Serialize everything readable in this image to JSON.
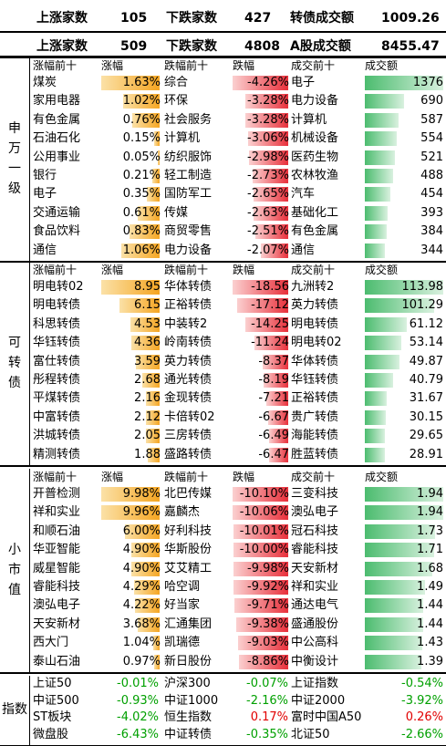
{
  "summary": [
    {
      "label_up": "上涨家数",
      "up": "105",
      "label_down": "下跌家数",
      "down": "427",
      "label_vol": "转债成交额",
      "vol": "1009.26"
    },
    {
      "label_up": "上涨家数",
      "up": "509",
      "label_down": "下跌家数",
      "down": "4808",
      "label_vol": "A股成交额",
      "vol": "8455.47"
    }
  ],
  "sections": [
    {
      "label": [
        "申",
        "万",
        "一",
        "级"
      ],
      "headers": [
        "涨幅前十",
        "涨幅",
        "跌幅前十",
        "跌幅",
        "成交前十",
        "成交额"
      ],
      "rows": [
        {
          "up_name": "煤炭",
          "up_pct": "1.63%",
          "up_v": 1.63,
          "dn_name": "综合",
          "dn_pct": "-4.26%",
          "dn_v": 4.26,
          "vol_name": "电子",
          "vol": "1376",
          "vol_v": 1376
        },
        {
          "up_name": "家用电器",
          "up_pct": "1.02%",
          "up_v": 1.02,
          "dn_name": "环保",
          "dn_pct": "-3.28%",
          "dn_v": 3.28,
          "vol_name": "电力设备",
          "vol": "690",
          "vol_v": 690
        },
        {
          "up_name": "有色金属",
          "up_pct": "0.76%",
          "up_v": 0.76,
          "dn_name": "社会服务",
          "dn_pct": "-3.28%",
          "dn_v": 3.28,
          "vol_name": "计算机",
          "vol": "587",
          "vol_v": 587
        },
        {
          "up_name": "石油石化",
          "up_pct": "0.15%",
          "up_v": 0.15,
          "dn_name": "计算机",
          "dn_pct": "-3.06%",
          "dn_v": 3.06,
          "vol_name": "机械设备",
          "vol": "554",
          "vol_v": 554
        },
        {
          "up_name": "公用事业",
          "up_pct": "0.05%",
          "up_v": 0.05,
          "dn_name": "纺织服饰",
          "dn_pct": "-2.98%",
          "dn_v": 2.98,
          "vol_name": "医药生物",
          "vol": "521",
          "vol_v": 521
        },
        {
          "up_name": "银行",
          "up_pct": "0.21%",
          "up_v": 0.21,
          "dn_name": "轻工制造",
          "dn_pct": "-2.73%",
          "dn_v": 2.73,
          "vol_name": "农林牧渔",
          "vol": "488",
          "vol_v": 488
        },
        {
          "up_name": "电子",
          "up_pct": "0.35%",
          "up_v": 0.35,
          "dn_name": "国防军工",
          "dn_pct": "-2.65%",
          "dn_v": 2.65,
          "vol_name": "汽车",
          "vol": "454",
          "vol_v": 454
        },
        {
          "up_name": "交通运输",
          "up_pct": "0.61%",
          "up_v": 0.61,
          "dn_name": "传媒",
          "dn_pct": "-2.63%",
          "dn_v": 2.63,
          "vol_name": "基础化工",
          "vol": "393",
          "vol_v": 393
        },
        {
          "up_name": "食品饮料",
          "up_pct": "0.83%",
          "up_v": 0.83,
          "dn_name": "商贸零售",
          "dn_pct": "-2.51%",
          "dn_v": 2.51,
          "vol_name": "有色金属",
          "vol": "384",
          "vol_v": 384
        },
        {
          "up_name": "通信",
          "up_pct": "1.06%",
          "up_v": 1.06,
          "dn_name": "电力设备",
          "dn_pct": "-2.07%",
          "dn_v": 2.07,
          "vol_name": "通信",
          "vol": "344",
          "vol_v": 344
        }
      ]
    },
    {
      "label": [
        "可",
        "转",
        "债"
      ],
      "headers": [
        "涨幅前十",
        "涨幅",
        "跌幅前十",
        "跌幅",
        "成交前十",
        "成交额"
      ],
      "rows": [
        {
          "up_name": "明电转02",
          "up_pct": "8.95",
          "up_v": 8.95,
          "dn_name": "华体转债",
          "dn_pct": "-18.56",
          "dn_v": 18.56,
          "vol_name": "九洲转2",
          "vol": "113.98",
          "vol_v": 113.98
        },
        {
          "up_name": "明电转债",
          "up_pct": "6.15",
          "up_v": 6.15,
          "dn_name": "正裕转债",
          "dn_pct": "-17.12",
          "dn_v": 17.12,
          "vol_name": "英力转债",
          "vol": "101.29",
          "vol_v": 101.29
        },
        {
          "up_name": "科思转债",
          "up_pct": "4.53",
          "up_v": 4.53,
          "dn_name": "中装转2",
          "dn_pct": "-14.25",
          "dn_v": 14.25,
          "vol_name": "明电转债",
          "vol": "61.12",
          "vol_v": 61.12
        },
        {
          "up_name": "华钰转债",
          "up_pct": "4.36",
          "up_v": 4.36,
          "dn_name": "岭南转债",
          "dn_pct": "-11.24",
          "dn_v": 11.24,
          "vol_name": "明电转02",
          "vol": "53.14",
          "vol_v": 53.14
        },
        {
          "up_name": "富仕转债",
          "up_pct": "3.59",
          "up_v": 3.59,
          "dn_name": "英力转债",
          "dn_pct": "-8.37",
          "dn_v": 8.37,
          "vol_name": "华体转债",
          "vol": "49.87",
          "vol_v": 49.87
        },
        {
          "up_name": "彤程转债",
          "up_pct": "2.68",
          "up_v": 2.68,
          "dn_name": "通光转债",
          "dn_pct": "-8.19",
          "dn_v": 8.19,
          "vol_name": "华钰转债",
          "vol": "40.79",
          "vol_v": 40.79
        },
        {
          "up_name": "平煤转债",
          "up_pct": "2.16",
          "up_v": 2.16,
          "dn_name": "金现转债",
          "dn_pct": "-7.21",
          "dn_v": 7.21,
          "vol_name": "正裕转债",
          "vol": "31.67",
          "vol_v": 31.67
        },
        {
          "up_name": "中富转债",
          "up_pct": "2.12",
          "up_v": 2.12,
          "dn_name": "卡倍转02",
          "dn_pct": "-6.67",
          "dn_v": 6.67,
          "vol_name": "贵广转债",
          "vol": "30.15",
          "vol_v": 30.15
        },
        {
          "up_name": "洪城转债",
          "up_pct": "2.05",
          "up_v": 2.05,
          "dn_name": "三房转债",
          "dn_pct": "-6.49",
          "dn_v": 6.49,
          "vol_name": "海能转债",
          "vol": "29.65",
          "vol_v": 29.65
        },
        {
          "up_name": "精测转债",
          "up_pct": "1.88",
          "up_v": 1.88,
          "dn_name": "盛路转债",
          "dn_pct": "-6.47",
          "dn_v": 6.47,
          "vol_name": "胜蓝转债",
          "vol": "28.91",
          "vol_v": 28.91
        }
      ]
    },
    {
      "label": [
        "小",
        "市",
        "值"
      ],
      "headers": [
        "涨幅前十",
        "涨幅",
        "跌幅前十",
        "跌幅",
        "成交前十",
        "成交额"
      ],
      "rows": [
        {
          "up_name": "开普检测",
          "up_pct": "9.98%",
          "up_v": 9.98,
          "dn_name": "北巴传媒",
          "dn_pct": "-10.10%",
          "dn_v": 10.1,
          "vol_name": "三变科技",
          "vol": "1.94",
          "vol_v": 1.94
        },
        {
          "up_name": "祥和实业",
          "up_pct": "9.96%",
          "up_v": 9.96,
          "dn_name": "嘉麟杰",
          "dn_pct": "-10.06%",
          "dn_v": 10.06,
          "vol_name": "澳弘电子",
          "vol": "1.94",
          "vol_v": 1.94
        },
        {
          "up_name": "和顺石油",
          "up_pct": "6.00%",
          "up_v": 6.0,
          "dn_name": "好利科技",
          "dn_pct": "-10.01%",
          "dn_v": 10.01,
          "vol_name": "冠石科技",
          "vol": "1.73",
          "vol_v": 1.73
        },
        {
          "up_name": "华亚智能",
          "up_pct": "4.90%",
          "up_v": 4.9,
          "dn_name": "华斯股份",
          "dn_pct": "-10.00%",
          "dn_v": 10.0,
          "vol_name": "睿能科技",
          "vol": "1.71",
          "vol_v": 1.71
        },
        {
          "up_name": "威星智能",
          "up_pct": "4.90%",
          "up_v": 4.9,
          "dn_name": "艾艾精工",
          "dn_pct": "-9.98%",
          "dn_v": 9.98,
          "vol_name": "天安新材",
          "vol": "1.68",
          "vol_v": 1.68
        },
        {
          "up_name": "睿能科技",
          "up_pct": "4.29%",
          "up_v": 4.29,
          "dn_name": "哈空调",
          "dn_pct": "-9.92%",
          "dn_v": 9.92,
          "vol_name": "祥和实业",
          "vol": "1.49",
          "vol_v": 1.49
        },
        {
          "up_name": "澳弘电子",
          "up_pct": "4.22%",
          "up_v": 4.22,
          "dn_name": "好当家",
          "dn_pct": "-9.71%",
          "dn_v": 9.71,
          "vol_name": "通达电气",
          "vol": "1.44",
          "vol_v": 1.44
        },
        {
          "up_name": "天安新材",
          "up_pct": "3.68%",
          "up_v": 3.68,
          "dn_name": "汇通集团",
          "dn_pct": "-9.38%",
          "dn_v": 9.38,
          "vol_name": "盛通股份",
          "vol": "1.44",
          "vol_v": 1.44
        },
        {
          "up_name": "西大门",
          "up_pct": "1.04%",
          "up_v": 1.04,
          "dn_name": "凯瑞德",
          "dn_pct": "-9.03%",
          "dn_v": 9.03,
          "vol_name": "中公高科",
          "vol": "1.43",
          "vol_v": 1.43
        },
        {
          "up_name": "泰山石油",
          "up_pct": "0.97%",
          "up_v": 0.97,
          "dn_name": "新日股份",
          "dn_pct": "-8.86%",
          "dn_v": 8.86,
          "vol_name": "中衡设计",
          "vol": "1.39",
          "vol_v": 1.39
        }
      ]
    }
  ],
  "index_section": {
    "label": "指数",
    "rows": [
      [
        {
          "name": "上证50",
          "chg": "-0.01%",
          "dir": "neg"
        },
        {
          "name": "沪深300",
          "chg": "-0.07%",
          "dir": "neg"
        },
        {
          "name": "上证指数",
          "chg": "-0.54%",
          "dir": "neg"
        }
      ],
      [
        {
          "name": "中证500",
          "chg": "-0.93%",
          "dir": "neg"
        },
        {
          "name": "中证1000",
          "chg": "-2.16%",
          "dir": "neg"
        },
        {
          "name": "中证2000",
          "chg": "-3.92%",
          "dir": "neg"
        }
      ],
      [
        {
          "name": "ST板块",
          "chg": "-4.02%",
          "dir": "neg"
        },
        {
          "name": "恒生指数",
          "chg": "0.17%",
          "dir": "pos"
        },
        {
          "name": "富时中国A50",
          "chg": "0.26%",
          "dir": "pos"
        }
      ],
      [
        {
          "name": "微盘股",
          "chg": "-6.43%",
          "dir": "neg"
        },
        {
          "name": "中证转债",
          "chg": "-0.35%",
          "dir": "neg"
        },
        {
          "name": "北证50",
          "chg": "-2.66%",
          "dir": "neg"
        }
      ]
    ]
  },
  "colors": {
    "up_bar": "#f5a623",
    "down_bar": "#e8303b",
    "volume_bar": "#4cbc6f",
    "negative_text": "#00a000",
    "positive_text": "#e10000"
  }
}
